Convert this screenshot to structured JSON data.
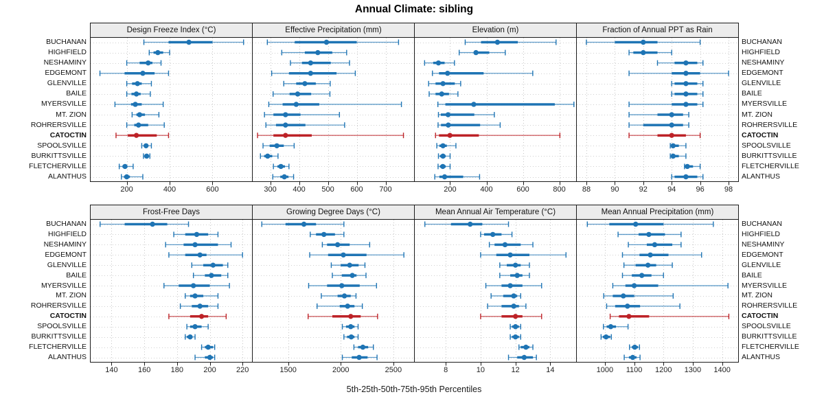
{
  "title": "Annual Climate: sibling",
  "footer": "5th-25th-50th-75th-95th Percentiles",
  "colors": {
    "series": "#1e74b4",
    "highlight": "#bd2227",
    "grid_vertical": "#c4c4c4",
    "grid_row_guide": "#cfcfcf",
    "panel_border": "#1a1a1a",
    "strip_background": "#ececec"
  },
  "chart_data": {
    "type": "dot-interval-trellis",
    "percentiles": [
      "5th",
      "25th",
      "50th",
      "75th",
      "95th"
    ],
    "legend": "thin line = 5th-95th, thick line = 25th-75th, dot = 50th percentile",
    "locations": [
      "BUCHANAN",
      "HIGHFIELD",
      "NESHAMINY",
      "EDGEMONT",
      "GLENVILLE",
      "BAILE",
      "MYERSVILLE",
      "MT. ZION",
      "ROHRERSVILLE",
      "CATOCTIN",
      "SPOOLSVILLE",
      "BURKITTSVILLE",
      "FLETCHERVILLE",
      "ALANTHUS"
    ],
    "highlighted_location": "CATOCTIN",
    "panels": [
      {
        "title": "Design Freeze Index (°C)",
        "grid_row": 0,
        "grid_col": 0,
        "xticks": [
          200,
          400,
          600
        ],
        "xlim": [
          30,
          786
        ],
        "values": [
          [
            280,
            395,
            490,
            600,
            745
          ],
          [
            305,
            325,
            345,
            370,
            400
          ],
          [
            200,
            260,
            300,
            320,
            360
          ],
          [
            75,
            190,
            275,
            330,
            395
          ],
          [
            200,
            225,
            250,
            270,
            315
          ],
          [
            200,
            222,
            245,
            265,
            310
          ],
          [
            145,
            220,
            240,
            270,
            370
          ],
          [
            225,
            245,
            260,
            285,
            350
          ],
          [
            200,
            235,
            255,
            300,
            375
          ],
          [
            150,
            205,
            245,
            340,
            395
          ],
          [
            270,
            280,
            290,
            300,
            315
          ],
          [
            278,
            285,
            293,
            302,
            308
          ],
          [
            165,
            180,
            192,
            203,
            230
          ],
          [
            175,
            187,
            200,
            215,
            275
          ]
        ]
      },
      {
        "title": "Effective Precipitation (mm)",
        "grid_row": 0,
        "grid_col": 1,
        "xticks": [
          300,
          400,
          500,
          600,
          700
        ],
        "xlim": [
          238,
          800
        ],
        "values": [
          [
            290,
            385,
            495,
            600,
            745
          ],
          [
            340,
            420,
            465,
            515,
            565
          ],
          [
            370,
            410,
            440,
            510,
            575
          ],
          [
            305,
            365,
            440,
            530,
            595
          ],
          [
            347,
            390,
            420,
            458,
            508
          ],
          [
            310,
            367,
            395,
            442,
            507
          ],
          [
            295,
            343,
            390,
            470,
            755
          ],
          [
            280,
            311,
            353,
            405,
            540
          ],
          [
            285,
            320,
            353,
            422,
            558
          ],
          [
            256,
            311,
            353,
            444,
            762
          ],
          [
            275,
            298,
            323,
            347,
            383
          ],
          [
            266,
            279,
            291,
            307,
            327
          ],
          [
            311,
            325,
            337,
            351,
            365
          ],
          [
            309,
            335,
            349,
            363,
            381
          ]
        ]
      },
      {
        "title": "Elevation (m)",
        "grid_row": 0,
        "grid_col": 2,
        "xticks": [
          200,
          400,
          600,
          800
        ],
        "xlim": [
          4,
          894
        ],
        "values": [
          [
            283,
            370,
            460,
            572,
            782
          ],
          [
            250,
            330,
            342,
            415,
            503
          ],
          [
            60,
            107,
            136,
            170,
            224
          ],
          [
            103,
            139,
            186,
            384,
            654
          ],
          [
            82,
            120,
            161,
            226,
            258
          ],
          [
            85,
            120,
            154,
            194,
            243
          ],
          [
            133,
            174,
            330,
            775,
            880
          ],
          [
            136,
            149,
            189,
            333,
            443
          ],
          [
            134,
            150,
            190,
            365,
            475
          ],
          [
            120,
            139,
            199,
            358,
            803
          ],
          [
            127,
            141,
            161,
            182,
            232
          ],
          [
            136,
            144,
            161,
            176,
            200
          ],
          [
            134,
            144,
            160,
            176,
            200
          ],
          [
            116,
            141,
            170,
            272,
            362
          ]
        ]
      },
      {
        "title": "Fraction of Annual PPT as Rain",
        "grid_row": 0,
        "grid_col": 3,
        "xticks": [
          88,
          90,
          92,
          94,
          96,
          98
        ],
        "xlim": [
          87.3,
          98.7
        ],
        "values": [
          [
            88,
            90,
            92,
            93,
            96
          ],
          [
            91,
            91.3,
            92,
            93,
            94
          ],
          [
            93,
            94.2,
            95,
            95.8,
            96.2
          ],
          [
            91,
            94,
            95,
            96,
            98
          ],
          [
            94,
            94.2,
            95,
            95.8,
            96.2
          ],
          [
            94,
            94.2,
            95,
            95.8,
            96.2
          ],
          [
            91,
            94,
            95,
            95.8,
            96.2
          ],
          [
            91,
            93,
            94,
            94.8,
            95.2
          ],
          [
            91,
            92,
            94,
            94.8,
            95.2
          ],
          [
            91,
            93,
            94,
            95,
            96
          ],
          [
            93.9,
            94,
            94.1,
            94.5,
            95
          ],
          [
            93.9,
            94,
            94.1,
            94.5,
            95
          ],
          [
            94.9,
            95,
            95.1,
            95.5,
            96
          ],
          [
            94,
            94.2,
            95,
            95.8,
            96.2
          ]
        ]
      },
      {
        "title": "Frost-Free Days",
        "grid_row": 1,
        "grid_col": 0,
        "xticks": [
          140,
          160,
          180,
          200,
          220
        ],
        "xlim": [
          127,
          226
        ],
        "values": [
          [
            133,
            148,
            165,
            174,
            187
          ],
          [
            178,
            185,
            192,
            199,
            205
          ],
          [
            173,
            184,
            191,
            205,
            213
          ],
          [
            175,
            185,
            194,
            198,
            220
          ],
          [
            189,
            196,
            202,
            208,
            211
          ],
          [
            190,
            197,
            201,
            207,
            211
          ],
          [
            172,
            181,
            190,
            200,
            212
          ],
          [
            185,
            188,
            191,
            196,
            205
          ],
          [
            182,
            189,
            194,
            199,
            205
          ],
          [
            175,
            188,
            195,
            199,
            210
          ],
          [
            186,
            188,
            191,
            195,
            199
          ],
          [
            185,
            186,
            188,
            189,
            191
          ],
          [
            195,
            197,
            199,
            202,
            203
          ],
          [
            191,
            197,
            200,
            202,
            203
          ]
        ]
      },
      {
        "title": "Growing Degree Days (°C)",
        "grid_row": 1,
        "grid_col": 1,
        "xticks": [
          1500,
          2000,
          2500
        ],
        "xlim": [
          1160,
          2700
        ],
        "values": [
          [
            1250,
            1475,
            1650,
            1765,
            2030
          ],
          [
            1710,
            1765,
            1840,
            1945,
            2030
          ],
          [
            1825,
            1870,
            1970,
            2085,
            2275
          ],
          [
            1705,
            1880,
            2025,
            2245,
            2600
          ],
          [
            1910,
            2000,
            2085,
            2170,
            2230
          ],
          [
            1920,
            2010,
            2110,
            2150,
            2240
          ],
          [
            1695,
            1870,
            2010,
            2180,
            2340
          ],
          [
            1815,
            1970,
            2035,
            2095,
            2145
          ],
          [
            1775,
            1990,
            2065,
            2130,
            2205
          ],
          [
            1690,
            1920,
            2095,
            2190,
            2350
          ],
          [
            2015,
            2050,
            2095,
            2130,
            2165
          ],
          [
            2030,
            2060,
            2100,
            2130,
            2165
          ],
          [
            2125,
            2165,
            2210,
            2260,
            2310
          ],
          [
            2015,
            2105,
            2175,
            2255,
            2345
          ]
        ]
      },
      {
        "title": "Mean Annual Air Temperature (°C)",
        "grid_row": 1,
        "grid_col": 2,
        "xticks": [
          8,
          10,
          12,
          14
        ],
        "xlim": [
          6.2,
          15.5
        ],
        "values": [
          [
            6.8,
            8.3,
            9.4,
            10.1,
            11.6
          ],
          [
            10.0,
            10.2,
            10.7,
            11.2,
            11.8
          ],
          [
            10.5,
            10.8,
            11.4,
            12.3,
            13.0
          ],
          [
            10.0,
            10.9,
            11.7,
            12.8,
            14.9
          ],
          [
            11.1,
            11.5,
            12.0,
            12.3,
            12.8
          ],
          [
            11.1,
            11.7,
            12.1,
            12.4,
            12.8
          ],
          [
            10.3,
            11.2,
            11.7,
            12.4,
            13.5
          ],
          [
            10.6,
            11.3,
            11.9,
            12.1,
            12.3
          ],
          [
            10.4,
            11.2,
            11.9,
            12.2,
            12.6
          ],
          [
            10.0,
            11.2,
            12.0,
            12.4,
            13.5
          ],
          [
            11.7,
            11.8,
            12.0,
            12.2,
            12.3
          ],
          [
            11.7,
            11.8,
            12.0,
            12.2,
            12.3
          ],
          [
            12.2,
            12.3,
            12.6,
            12.8,
            13.0
          ],
          [
            11.6,
            12.1,
            12.5,
            13.0,
            13.2
          ]
        ]
      },
      {
        "title": "Mean Annual Precipitation (mm)",
        "grid_row": 1,
        "grid_col": 3,
        "xticks": [
          1000,
          1100,
          1200,
          1300,
          1400
        ],
        "xlim": [
          903,
          1456
        ],
        "values": [
          [
            940,
            1015,
            1105,
            1200,
            1370
          ],
          [
            1045,
            1115,
            1150,
            1205,
            1260
          ],
          [
            1080,
            1143,
            1170,
            1230,
            1260
          ],
          [
            1060,
            1118,
            1155,
            1217,
            1330
          ],
          [
            1065,
            1105,
            1147,
            1175,
            1230
          ],
          [
            1060,
            1092,
            1126,
            1159,
            1200
          ],
          [
            1027,
            1070,
            1100,
            1182,
            1420
          ],
          [
            996,
            1027,
            1063,
            1100,
            1233
          ],
          [
            1006,
            1035,
            1077,
            1120,
            1256
          ],
          [
            1018,
            1048,
            1082,
            1151,
            1423
          ],
          [
            995,
            1006,
            1020,
            1038,
            1079
          ],
          [
            987,
            993,
            1004,
            1018,
            1022
          ],
          [
            1084,
            1092,
            1102,
            1113,
            1118
          ],
          [
            1066,
            1082,
            1095,
            1108,
            1120
          ]
        ]
      }
    ]
  }
}
